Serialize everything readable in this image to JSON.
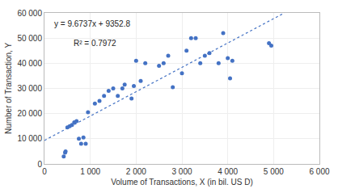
{
  "chart_data": {
    "type": "scatter",
    "xlabel": "Volume of Transactions, X (in bil. US D)",
    "ylabel": "Number of Transaction, Y",
    "annotations": [
      "y = 9.6737x + 9352.8",
      "R² = 0.7972"
    ],
    "series": [
      {
        "type": "scatter",
        "marker": "circle",
        "color": "#4472C4",
        "x": [
          420,
          450,
          460,
          500,
          550,
          600,
          650,
          700,
          750,
          800,
          850,
          900,
          950,
          1100,
          1200,
          1300,
          1400,
          1500,
          1600,
          1700,
          1750,
          1900,
          1950,
          2000,
          2100,
          2200,
          2500,
          2600,
          2700,
          2800,
          3000,
          3100,
          3200,
          3300,
          3400,
          3500,
          3600,
          3800,
          3900,
          4000,
          4050,
          4100,
          4900,
          4950
        ],
        "values": [
          3000,
          4500,
          5000,
          14500,
          15000,
          15500,
          16500,
          17000,
          10000,
          8000,
          10500,
          8000,
          20500,
          24000,
          25000,
          27000,
          29000,
          30000,
          27000,
          30000,
          31500,
          26000,
          31000,
          41000,
          33000,
          40000,
          39000,
          40000,
          43000,
          30500,
          36000,
          45000,
          50000,
          50000,
          40000,
          43000,
          44000,
          40000,
          52000,
          42000,
          34000,
          41000,
          48000,
          47000
        ]
      },
      {
        "type": "line",
        "line_style": "dotted",
        "color": "#4472C4",
        "x": [
          0,
          5235.56
        ],
        "values": [
          9352.8,
          60000
        ]
      }
    ],
    "xlim": [
      0,
      6000
    ],
    "ylim": [
      0,
      60000
    ],
    "xticks": [
      0,
      {
        "value": 1000,
        "label": "1 000"
      },
      {
        "value": 2000,
        "label": "2 000"
      },
      {
        "value": 3000,
        "label": "3 000"
      },
      {
        "value": 4000,
        "label": "4 000"
      },
      {
        "value": 5000,
        "label": "5 000"
      },
      {
        "value": 6000,
        "label": "6 000"
      }
    ],
    "yticks": [
      0,
      {
        "value": 10000,
        "label": "10 000"
      },
      {
        "value": 20000,
        "label": "20 000"
      },
      {
        "value": 30000,
        "label": "30 000"
      },
      {
        "value": 40000,
        "label": "40 000"
      },
      {
        "value": 50000,
        "label": "50 000"
      },
      {
        "value": 60000,
        "label": "60 000"
      }
    ],
    "grid": true
  }
}
